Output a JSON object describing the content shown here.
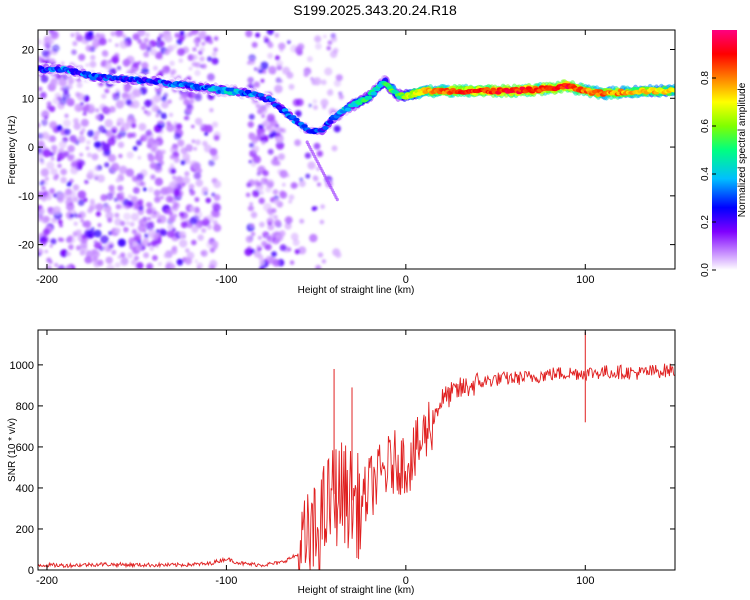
{
  "figure": {
    "title": "S199.2025.343.20.24.R18"
  },
  "chart_data": [
    {
      "type": "heatmap",
      "title": "",
      "xlabel": "Height of straight line (km)",
      "ylabel": "Frequency (Hz)",
      "xlim": [
        -205,
        150
      ],
      "ylim": [
        -25,
        24
      ],
      "xticks": [
        -200,
        -100,
        0,
        100
      ],
      "yticks": [
        -20,
        -10,
        0,
        10,
        20
      ],
      "colorbar": {
        "label": "Normalized spectral amplitude",
        "range": [
          0.0,
          1.0
        ],
        "ticks": [
          0.0,
          0.2,
          0.4,
          0.6,
          0.8
        ],
        "colors": [
          "#ffffff",
          "#c080ff",
          "#7f00ff",
          "#0000ff",
          "#00bfff",
          "#00ff80",
          "#80ff00",
          "#ffff00",
          "#ff8000",
          "#ff0000",
          "#ff0080"
        ]
      },
      "ridge": {
        "x": [
          -205,
          -190,
          -175,
          -160,
          -140,
          -120,
          -100,
          -85,
          -75,
          -65,
          -55,
          -48,
          -40,
          -30,
          -20,
          -12,
          -8,
          -4,
          0,
          10,
          30,
          60,
          80,
          90,
          100,
          110,
          130,
          150
        ],
        "freq": [
          16,
          16,
          14.5,
          14,
          13.5,
          12.5,
          11.5,
          11,
          9.5,
          6.5,
          3.5,
          3,
          6,
          8.5,
          10.5,
          13.5,
          12,
          10.5,
          10.5,
          11.5,
          11.5,
          11.5,
          12,
          12.5,
          11.5,
          11,
          11.5,
          11.5
        ],
        "amplitude": [
          0.3,
          0.35,
          0.3,
          0.3,
          0.3,
          0.35,
          0.4,
          0.35,
          0.3,
          0.35,
          0.3,
          0.3,
          0.35,
          0.45,
          0.5,
          0.45,
          0.55,
          0.5,
          0.6,
          0.75,
          0.85,
          0.9,
          0.85,
          0.9,
          0.8,
          0.8,
          0.75,
          0.7
        ]
      }
    },
    {
      "type": "line",
      "title": "",
      "xlabel": "Height of straight line (km)",
      "ylabel": "SNR (10 * v/v)",
      "xlim": [
        -205,
        150
      ],
      "ylim": [
        0,
        1170
      ],
      "xticks": [
        -200,
        -100,
        0,
        100
      ],
      "yticks": [
        0,
        200,
        400,
        600,
        800,
        1000
      ],
      "series": [
        {
          "name": "SNR",
          "color": "#e02020",
          "x": [
            -205,
            -190,
            -170,
            -150,
            -130,
            -110,
            -100,
            -95,
            -90,
            -80,
            -70,
            -60,
            -50,
            -45,
            -40,
            -35,
            -30,
            -25,
            -20,
            -15,
            -10,
            -5,
            0,
            5,
            10,
            15,
            20,
            30,
            40,
            50,
            60,
            70,
            80,
            90,
            100,
            110,
            120,
            130,
            140,
            150
          ],
          "y": [
            25,
            22,
            28,
            25,
            24,
            30,
            55,
            40,
            30,
            25,
            35,
            75,
            170,
            280,
            370,
            380,
            340,
            300,
            410,
            450,
            500,
            530,
            520,
            560,
            650,
            740,
            830,
            880,
            910,
            930,
            935,
            940,
            955,
            960,
            960,
            965,
            965,
            960,
            970,
            975
          ]
        }
      ],
      "annotations": [
        {
          "x": -40,
          "y": 980
        },
        {
          "x": -30,
          "y": 890
        },
        {
          "x": 100,
          "y": 1160
        },
        {
          "x": 100,
          "y": 720
        }
      ]
    }
  ]
}
